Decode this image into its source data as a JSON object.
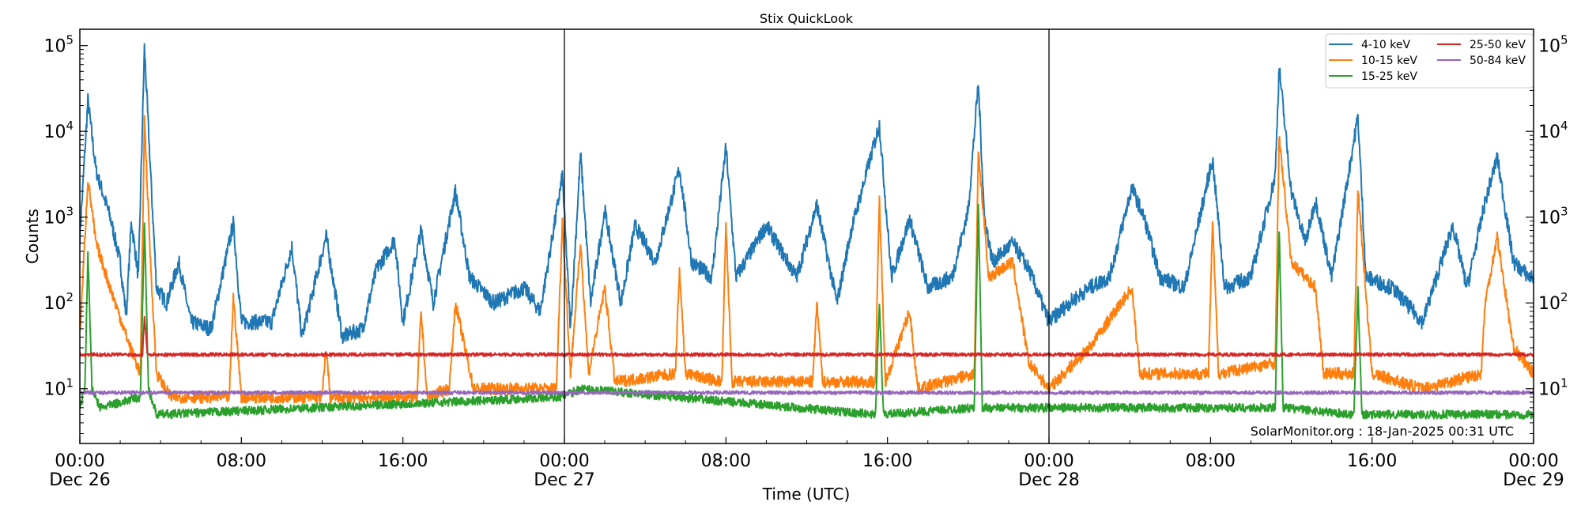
{
  "chart_data": {
    "type": "line",
    "title": "Stix QuickLook",
    "xlabel": "Time (UTC)",
    "ylabel": "Counts",
    "yscale": "log",
    "ylim": [
      2.3,
      155000
    ],
    "xlim_hours_from_start": [
      0,
      72
    ],
    "x_unit": "hours after Dec 26 00:00 UTC",
    "x_ticks": [
      {
        "h": 0,
        "label": "00:00",
        "date": "Dec 26"
      },
      {
        "h": 8,
        "label": "08:00",
        "date": ""
      },
      {
        "h": 16,
        "label": "16:00",
        "date": ""
      },
      {
        "h": 24,
        "label": "00:00",
        "date": "Dec 27"
      },
      {
        "h": 32,
        "label": "08:00",
        "date": ""
      },
      {
        "h": 40,
        "label": "16:00",
        "date": ""
      },
      {
        "h": 48,
        "label": "00:00",
        "date": "Dec 28"
      },
      {
        "h": 56,
        "label": "08:00",
        "date": ""
      },
      {
        "h": 64,
        "label": "16:00",
        "date": ""
      },
      {
        "h": 72,
        "label": "00:00",
        "date": "Dec 29"
      }
    ],
    "y_ticks": [
      {
        "v": 10,
        "base": "10",
        "exp": "1"
      },
      {
        "v": 100,
        "base": "10",
        "exp": "2"
      },
      {
        "v": 1000,
        "base": "10",
        "exp": "3"
      },
      {
        "v": 10000,
        "base": "10",
        "exp": "4"
      },
      {
        "v": 100000,
        "base": "10",
        "exp": "5"
      }
    ],
    "day_boundaries_hours": [
      24,
      48
    ],
    "legend_position": "top-right",
    "annotation": "SolarMonitor.org : 18-Jan-2025 00:31 UTC",
    "series": [
      {
        "name": "4-10 keV",
        "color": "#1f77b4",
        "points": [
          [
            0,
            580
          ],
          [
            0.4,
            23000
          ],
          [
            0.8,
            3500
          ],
          [
            1.5,
            1000
          ],
          [
            2,
            300
          ],
          [
            2.3,
            70
          ],
          [
            2.55,
            900
          ],
          [
            2.9,
            200
          ],
          [
            3.2,
            95000
          ],
          [
            3.55,
            2000
          ],
          [
            3.8,
            150
          ],
          [
            4.3,
            100
          ],
          [
            4.9,
            300
          ],
          [
            5.5,
            60
          ],
          [
            6.5,
            50
          ],
          [
            7.6,
            850
          ],
          [
            8,
            60
          ],
          [
            9.5,
            60
          ],
          [
            10.5,
            450
          ],
          [
            11,
            40
          ],
          [
            12.2,
            600
          ],
          [
            13,
            40
          ],
          [
            14,
            50
          ],
          [
            14.7,
            250
          ],
          [
            15.6,
            550
          ],
          [
            16,
            60
          ],
          [
            16.9,
            700
          ],
          [
            17.5,
            100
          ],
          [
            18.6,
            2000
          ],
          [
            19.3,
            200
          ],
          [
            20.5,
            100
          ],
          [
            22,
            150
          ],
          [
            22.8,
            80
          ],
          [
            23.9,
            3000
          ],
          [
            24.3,
            50
          ],
          [
            24.8,
            5500
          ],
          [
            25.3,
            100
          ],
          [
            26,
            1200
          ],
          [
            26.8,
            100
          ],
          [
            27.5,
            800
          ],
          [
            28.5,
            300
          ],
          [
            29.7,
            3700
          ],
          [
            30.3,
            300
          ],
          [
            31.3,
            200
          ],
          [
            32,
            6500
          ],
          [
            32.5,
            200
          ],
          [
            34,
            800
          ],
          [
            35.5,
            200
          ],
          [
            36.5,
            1400
          ],
          [
            37.5,
            100
          ],
          [
            38.2,
            700
          ],
          [
            39.6,
            12000
          ],
          [
            40.2,
            200
          ],
          [
            41.1,
            950
          ],
          [
            42,
            150
          ],
          [
            43.2,
            200
          ],
          [
            44,
            1200
          ],
          [
            44.5,
            37000
          ],
          [
            44.8,
            1000
          ],
          [
            45.2,
            300
          ],
          [
            46.2,
            500
          ],
          [
            47,
            250
          ],
          [
            48,
            60
          ],
          [
            49,
            100
          ],
          [
            50,
            150
          ],
          [
            51,
            200
          ],
          [
            52.1,
            2200
          ],
          [
            52.7,
            1000
          ],
          [
            53.5,
            200
          ],
          [
            54.7,
            150
          ],
          [
            56.1,
            4800
          ],
          [
            56.7,
            150
          ],
          [
            58,
            200
          ],
          [
            59.2,
            3000
          ],
          [
            59.4,
            56000
          ],
          [
            60,
            2000
          ],
          [
            60.7,
            500
          ],
          [
            61.2,
            1600
          ],
          [
            62,
            200
          ],
          [
            63.3,
            15000
          ],
          [
            63.7,
            200
          ],
          [
            65,
            150
          ],
          [
            66.5,
            60
          ],
          [
            68,
            800
          ],
          [
            68.7,
            150
          ],
          [
            69.6,
            1500
          ],
          [
            70.2,
            5000
          ],
          [
            71,
            300
          ],
          [
            71.8,
            200
          ],
          [
            72,
            200
          ]
        ]
      },
      {
        "name": "10-15 keV",
        "color": "#ff7f0e",
        "points": [
          [
            0,
            40
          ],
          [
            0.4,
            2800
          ],
          [
            0.8,
            500
          ],
          [
            1.5,
            150
          ],
          [
            2.5,
            30
          ],
          [
            3,
            15
          ],
          [
            3.2,
            14000
          ],
          [
            3.5,
            300
          ],
          [
            3.8,
            15
          ],
          [
            4.5,
            8
          ],
          [
            7.4,
            8
          ],
          [
            7.6,
            120
          ],
          [
            8,
            8
          ],
          [
            12,
            8
          ],
          [
            12.2,
            30
          ],
          [
            12.4,
            8
          ],
          [
            16.7,
            8
          ],
          [
            16.9,
            80
          ],
          [
            17.2,
            8
          ],
          [
            18.3,
            10
          ],
          [
            18.6,
            100
          ],
          [
            19.5,
            10
          ],
          [
            23.6,
            10
          ],
          [
            23.9,
            900
          ],
          [
            24.3,
            15
          ],
          [
            24.8,
            500
          ],
          [
            25.2,
            15
          ],
          [
            26,
            150
          ],
          [
            26.5,
            12
          ],
          [
            29.5,
            15
          ],
          [
            29.7,
            250
          ],
          [
            30,
            15
          ],
          [
            31.8,
            12
          ],
          [
            32,
            800
          ],
          [
            32.3,
            12
          ],
          [
            36.3,
            12
          ],
          [
            36.5,
            100
          ],
          [
            36.8,
            12
          ],
          [
            39.4,
            12
          ],
          [
            39.6,
            1600
          ],
          [
            39.9,
            12
          ],
          [
            41.1,
            80
          ],
          [
            41.5,
            10
          ],
          [
            44.3,
            15
          ],
          [
            44.5,
            6000
          ],
          [
            45,
            200
          ],
          [
            46.2,
            300
          ],
          [
            47,
            20
          ],
          [
            48,
            10
          ],
          [
            50,
            30
          ],
          [
            52.1,
            150
          ],
          [
            52.5,
            15
          ],
          [
            55.9,
            15
          ],
          [
            56.1,
            900
          ],
          [
            56.4,
            15
          ],
          [
            59.2,
            20
          ],
          [
            59.4,
            8500
          ],
          [
            60,
            300
          ],
          [
            61.2,
            150
          ],
          [
            61.6,
            15
          ],
          [
            63.1,
            15
          ],
          [
            63.3,
            2200
          ],
          [
            64,
            15
          ],
          [
            66.5,
            10
          ],
          [
            69.4,
            15
          ],
          [
            69.6,
            100
          ],
          [
            70.2,
            600
          ],
          [
            71,
            30
          ],
          [
            72,
            15
          ]
        ]
      },
      {
        "name": "15-25 keV",
        "color": "#2ca02c",
        "points": [
          [
            0,
            6
          ],
          [
            0.25,
            10
          ],
          [
            0.4,
            400
          ],
          [
            0.6,
            10
          ],
          [
            1,
            6
          ],
          [
            3,
            8
          ],
          [
            3.2,
            850
          ],
          [
            3.4,
            10
          ],
          [
            3.8,
            5
          ],
          [
            23.9,
            8
          ],
          [
            24.8,
            10
          ],
          [
            39.4,
            5
          ],
          [
            39.6,
            100
          ],
          [
            39.8,
            5
          ],
          [
            44.3,
            6
          ],
          [
            44.5,
            1500
          ],
          [
            44.7,
            6
          ],
          [
            59.2,
            6
          ],
          [
            59.4,
            700
          ],
          [
            59.6,
            6
          ],
          [
            63.1,
            5
          ],
          [
            63.3,
            150
          ],
          [
            63.5,
            5
          ],
          [
            72,
            5
          ]
        ]
      },
      {
        "name": "25-50 keV",
        "color": "#d62728",
        "points": [
          [
            0,
            25
          ],
          [
            3.1,
            25
          ],
          [
            3.2,
            70
          ],
          [
            3.35,
            25
          ],
          [
            72,
            25
          ]
        ]
      },
      {
        "name": "50-84 keV",
        "color": "#9467bd",
        "points": [
          [
            0,
            9
          ],
          [
            72,
            9
          ]
        ]
      }
    ]
  }
}
